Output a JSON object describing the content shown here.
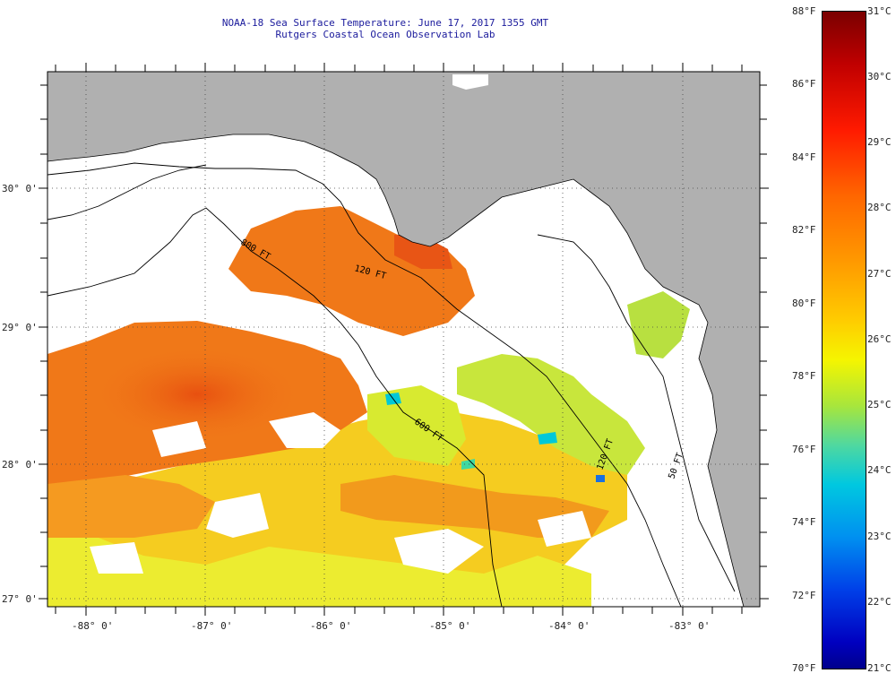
{
  "header": {
    "title_line1": "NOAA-18 Sea Surface Temperature:  June 17, 2017 1355 GMT",
    "title_line2": "Rutgers Coastal Ocean Observation Lab"
  },
  "map": {
    "lat_labels": [
      "30° 0'",
      "29° 0'",
      "28° 0'",
      "27° 0'"
    ],
    "lon_labels": [
      "-88° 0'",
      "-87° 0'",
      "-86° 0'",
      "-85° 0'",
      "-84° 0'",
      "-83° 0'"
    ],
    "contour_labels": [
      "800 FT",
      "120 FT",
      "600 FT",
      "120 FT",
      "50 FT"
    ],
    "colors": {
      "land": "#b0b0b0",
      "cloud": "#ffffff",
      "ocean_warm": "#f07818",
      "ocean_mid": "#f5c818",
      "ocean_cool": "#c8e63c"
    }
  },
  "colorbar": {
    "fahrenheit": [
      "88°F",
      "86°F",
      "84°F",
      "82°F",
      "80°F",
      "78°F",
      "76°F",
      "74°F",
      "72°F",
      "70°F"
    ],
    "celsius": [
      "31°C",
      "30°C",
      "29°C",
      "28°C",
      "27°C",
      "26°C",
      "25°C",
      "24°C",
      "23°C",
      "22°C",
      "21°C"
    ]
  }
}
